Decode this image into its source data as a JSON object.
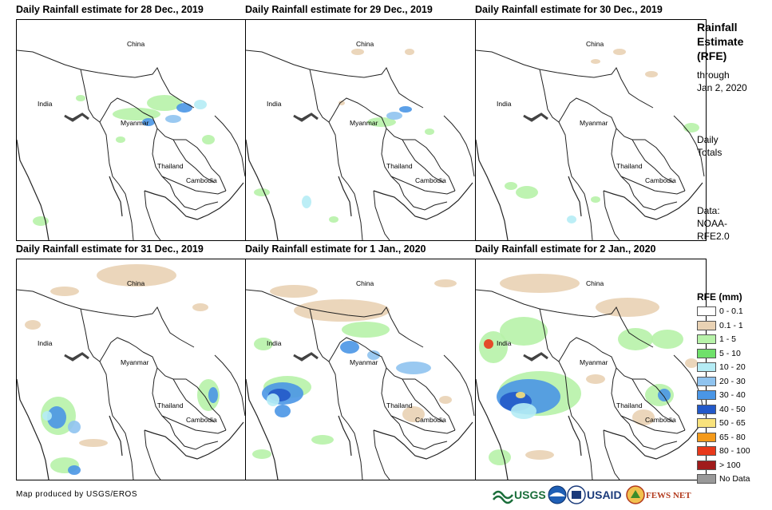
{
  "panels": [
    {
      "title": "Daily Rainfall estimate for 28 Dec., 2019"
    },
    {
      "title": "Daily Rainfall estimate for 29 Dec., 2019"
    },
    {
      "title": "Daily Rainfall estimate for 30 Dec., 2019"
    },
    {
      "title": "Daily Rainfall estimate for 31 Dec., 2019"
    },
    {
      "title": "Daily Rainfall estimate for 1 Jan., 2020"
    },
    {
      "title": "Daily Rainfall estimate for 2 Jan., 2020"
    }
  ],
  "places": {
    "china": "China",
    "india": "India",
    "myanmar": "Myanmar",
    "thailand": "Thailand",
    "cambodia": "Cambodia"
  },
  "side": {
    "title_line1": "Rainfall",
    "title_line2": "Estimate",
    "title_line3": "(RFE)",
    "through": "through",
    "through_date": "Jan 2, 2020",
    "daily1": "Daily",
    "daily2": "Totals",
    "data1": "Data:",
    "data2": "NOAA-",
    "data3": "RFE2.0"
  },
  "legend": {
    "title": "RFE (mm)",
    "items": [
      {
        "label": "0 - 0.1",
        "color": "#ffffff"
      },
      {
        "label": "0.1 - 1",
        "color": "#e9d2b4"
      },
      {
        "label": "1 - 5",
        "color": "#b7f2a9"
      },
      {
        "label": "5 - 10",
        "color": "#6fe06a"
      },
      {
        "label": "10 - 20",
        "color": "#b5ecf5"
      },
      {
        "label": "20 - 30",
        "color": "#8fc3ef"
      },
      {
        "label": "30 - 40",
        "color": "#4a96e6"
      },
      {
        "label": "40 - 50",
        "color": "#2359c9"
      },
      {
        "label": "50 - 65",
        "color": "#f8e27c"
      },
      {
        "label": "65 - 80",
        "color": "#f49a1a"
      },
      {
        "label": "80 - 100",
        "color": "#e8391b"
      },
      {
        "label": "> 100",
        "color": "#a01b1b"
      },
      {
        "label": "No Data",
        "color": "#999999"
      }
    ]
  },
  "footer": "Map produced by USGS/EROS",
  "logos": {
    "usgs": "USGS",
    "usaid": "USAID",
    "fews": "FEWS NET"
  }
}
